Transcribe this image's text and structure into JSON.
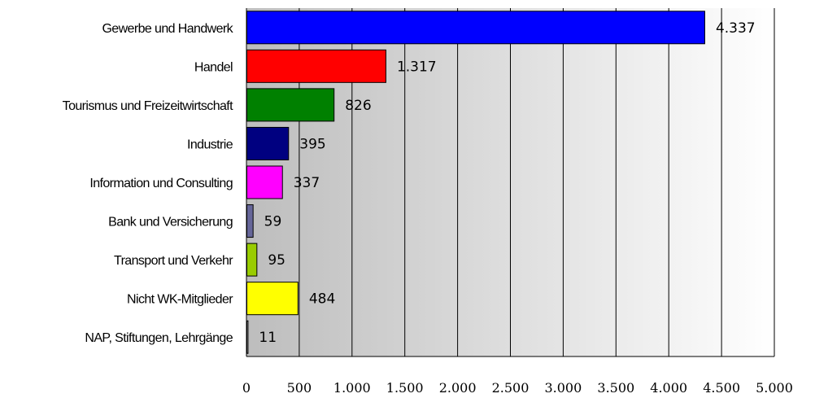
{
  "chart_data": {
    "type": "bar",
    "orientation": "horizontal",
    "categories": [
      "Gewerbe und Handwerk",
      "Handel",
      "Tourismus und Freizeitwirtschaft",
      "Industrie",
      "Information und Consulting",
      "Bank und Versicherung",
      "Transport und Verkehr",
      "Nicht WK-Mitglieder",
      "NAP, Stiftungen, Lehrgänge"
    ],
    "values": [
      4337,
      1317,
      826,
      395,
      337,
      59,
      95,
      484,
      11
    ],
    "value_labels": [
      "4.337",
      "1.317",
      "826",
      "395",
      "337",
      "59",
      "95",
      "484",
      "11"
    ],
    "bar_colors": [
      "#0000ff",
      "#ff0000",
      "#008000",
      "#000080",
      "#ff00ff",
      "#666699",
      "#99cc00",
      "#ffff00",
      "#c0c0c0"
    ],
    "xlim": [
      0,
      5000
    ],
    "x_ticks": [
      0,
      500,
      1000,
      1500,
      2000,
      2500,
      3000,
      3500,
      4000,
      4500,
      5000
    ],
    "x_tick_labels": [
      "0",
      "500",
      "1.000",
      "1.500",
      "2.000",
      "2.500",
      "3.000",
      "3.500",
      "4.000",
      "4.500",
      "5.000"
    ],
    "grid": true,
    "plot_background": "#d9d9d9",
    "legend": false
  }
}
